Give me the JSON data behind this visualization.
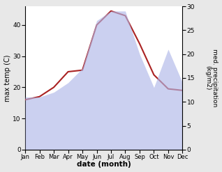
{
  "months": [
    "Jan",
    "Feb",
    "Mar",
    "Apr",
    "May",
    "Jun",
    "Jul",
    "Aug",
    "Sep",
    "Oct",
    "Nov",
    "Dec"
  ],
  "temp": [
    16.0,
    17.0,
    20.0,
    25.0,
    25.5,
    40.0,
    44.5,
    43.0,
    34.0,
    24.0,
    19.5,
    19.0
  ],
  "precip": [
    11,
    11,
    12,
    14,
    17,
    27,
    29,
    29,
    20,
    13,
    21,
    14
  ],
  "temp_color": "#aa2222",
  "precip_color": "#b0b8e8",
  "precip_alpha": 0.65,
  "xlabel": "date (month)",
  "ylabel_left": "max temp (C)",
  "ylabel_right": "med. precipitation\n(kg/m2)",
  "ylim_left": [
    0,
    46
  ],
  "ylim_right": [
    0,
    30
  ],
  "yticks_left": [
    0,
    10,
    20,
    30,
    40
  ],
  "yticks_right": [
    0,
    5,
    10,
    15,
    20,
    25,
    30
  ],
  "bg_color": "#e8e8e8",
  "plot_bg_color": "#ffffff"
}
